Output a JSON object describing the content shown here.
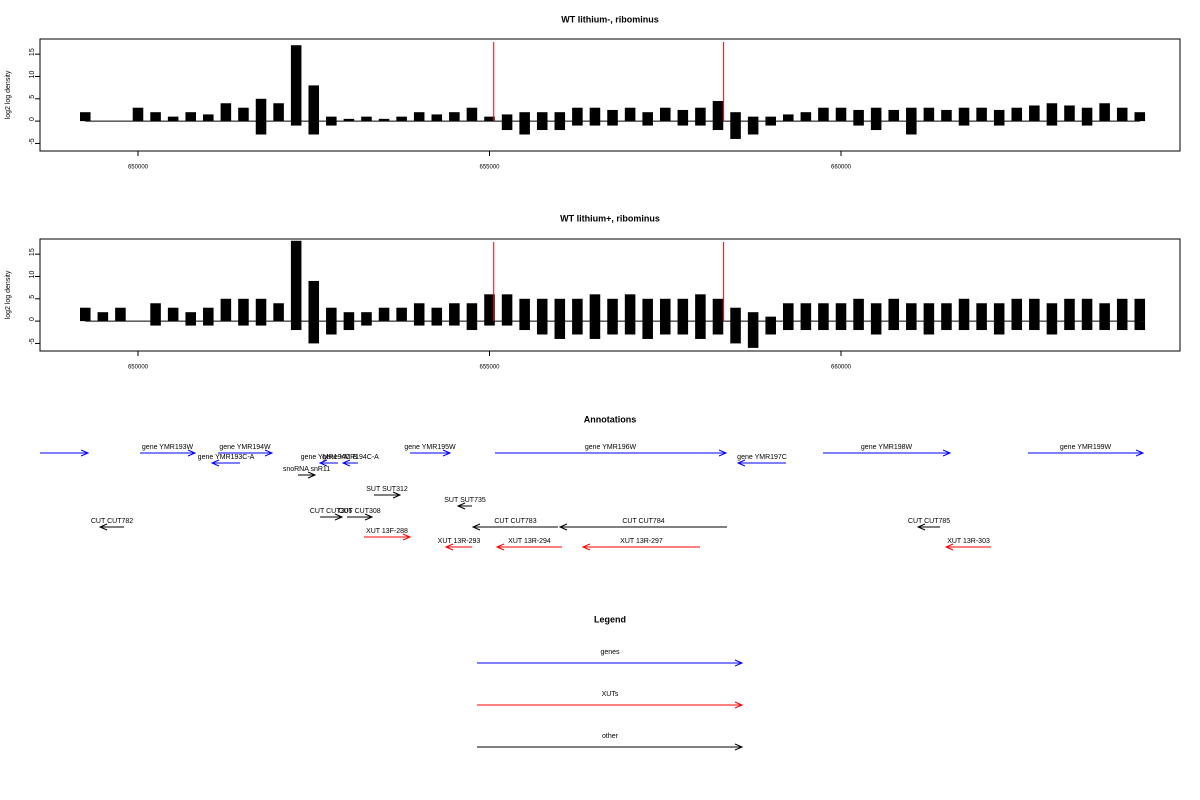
{
  "chart_data": [
    {
      "type": "bar",
      "title": "WT lithium-, ribominus",
      "ylabel": "log2 log density",
      "x": [
        649250,
        649500,
        649750,
        650000,
        650250,
        650500,
        650750,
        651000,
        651250,
        651500,
        651750,
        652000,
        652250,
        652500,
        652750,
        653000,
        653250,
        653500,
        653750,
        654000,
        654250,
        654500,
        654750,
        655000,
        655250,
        655500,
        655750,
        656000,
        656250,
        656500,
        656750,
        657000,
        657250,
        657500,
        657750,
        658000,
        658250,
        658500,
        658750,
        659000,
        659250,
        659500,
        659750,
        660000,
        660250,
        660500,
        660750,
        661000,
        661250,
        661500,
        661750,
        662000,
        662250,
        662500,
        662750,
        663000,
        663250,
        663500,
        663750,
        664000,
        664250
      ],
      "series": [
        {
          "color": "#000000",
          "values": [
            2,
            0,
            0,
            3,
            2,
            1,
            2,
            1.5,
            4,
            3,
            5,
            4,
            17,
            8,
            1,
            0.5,
            1,
            0.5,
            1,
            2,
            1.5,
            2,
            3,
            1,
            1.5,
            2,
            2,
            2,
            3,
            3,
            2.5,
            3,
            2,
            3,
            2.5,
            3,
            4.5,
            2,
            1,
            1,
            1.5,
            2,
            3,
            3,
            2.5,
            3,
            2.5,
            3,
            3,
            2.5,
            3,
            3,
            2.5,
            3,
            3.5,
            4,
            3.5,
            3,
            4,
            3,
            2
          ]
        },
        {
          "color": "#000000",
          "values": [
            0,
            0,
            0,
            0,
            0,
            0,
            0,
            0,
            0,
            0,
            -3,
            0,
            -1,
            -3,
            -1,
            0,
            0,
            0,
            0,
            0,
            0,
            0,
            0,
            0,
            -2,
            -3,
            -2,
            -2,
            -1,
            -1,
            -1,
            0,
            -1,
            0,
            -1,
            -1,
            -2,
            -4,
            -3,
            -1,
            0,
            0,
            0,
            0,
            -1,
            -2,
            0,
            -3,
            0,
            0,
            -1,
            0,
            -1,
            0,
            0,
            -1,
            0,
            -1,
            0,
            0,
            0
          ]
        }
      ],
      "vlines": {
        "x": [
          655060,
          658330
        ],
        "color": "#ff0000"
      },
      "xlim": [
        648606,
        664822
      ],
      "xticks": [
        650000,
        655000,
        660000
      ],
      "ylim": [
        -6.7,
        18.4
      ],
      "yticks": [
        -5,
        0,
        5,
        10,
        15
      ]
    },
    {
      "type": "bar",
      "title": "WT lithium+, ribominus",
      "ylabel": "log2 log density",
      "x": [
        649250,
        649500,
        649750,
        650000,
        650250,
        650500,
        650750,
        651000,
        651250,
        651500,
        651750,
        652000,
        652250,
        652500,
        652750,
        653000,
        653250,
        653500,
        653750,
        654000,
        654250,
        654500,
        654750,
        655000,
        655250,
        655500,
        655750,
        656000,
        656250,
        656500,
        656750,
        657000,
        657250,
        657500,
        657750,
        658000,
        658250,
        658500,
        658750,
        659000,
        659250,
        659500,
        659750,
        660000,
        660250,
        660500,
        660750,
        661000,
        661250,
        661500,
        661750,
        662000,
        662250,
        662500,
        662750,
        663000,
        663250,
        663500,
        663750,
        664000,
        664250
      ],
      "series": [
        {
          "color": "#000000",
          "values": [
            3,
            2,
            3,
            0,
            4,
            3,
            2,
            3,
            5,
            5,
            5,
            4,
            18,
            9,
            3,
            2,
            2,
            3,
            3,
            4,
            3,
            4,
            4,
            6,
            6,
            5,
            5,
            5,
            5,
            6,
            5,
            6,
            5,
            5,
            5,
            6,
            5,
            3,
            2,
            1,
            4,
            4,
            4,
            4,
            5,
            4,
            5,
            4,
            4,
            4,
            5,
            4,
            4,
            5,
            5,
            4,
            5,
            5,
            4,
            5,
            5
          ]
        },
        {
          "color": "#000000",
          "values": [
            0,
            0,
            0,
            0,
            -1,
            0,
            -1,
            -1,
            0,
            -1,
            -1,
            0,
            -2,
            -5,
            -3,
            -2,
            -1,
            0,
            0,
            -1,
            -1,
            -1,
            -2,
            -1,
            -1,
            -2,
            -3,
            -4,
            -3,
            -4,
            -3,
            -3,
            -4,
            -3,
            -3,
            -4,
            -3,
            -5,
            -6,
            -3,
            -2,
            -2,
            -2,
            -2,
            -2,
            -3,
            -2,
            -2,
            -3,
            -2,
            -2,
            -2,
            -3,
            -2,
            -2,
            -3,
            -2,
            -2,
            -2,
            -2,
            -2
          ]
        }
      ],
      "vlines": {
        "x": [
          655060,
          658330
        ],
        "color": "#ff0000"
      },
      "xlim": [
        648606,
        664822
      ],
      "xticks": [
        650000,
        655000,
        660000
      ],
      "ylim": [
        -6.7,
        18.4
      ],
      "yticks": [
        -5,
        0,
        5,
        10,
        15
      ]
    }
  ],
  "annotations": {
    "title": "Annotations",
    "features": [
      {
        "start": 648606,
        "end": 649289,
        "strand": "+",
        "color": "#0000ff"
      },
      {
        "label": "gene YMR193W",
        "start": 650029,
        "end": 650811,
        "strand": "+",
        "color": "#0000ff"
      },
      {
        "label": "gene YMR194W",
        "start": 651138,
        "end": 651906,
        "strand": "+",
        "color": "#0000ff"
      },
      {
        "label": "gene YMR193C-A",
        "start": 651053,
        "end": 651451,
        "strand": "-",
        "color": "#0000ff"
      },
      {
        "label": "gene YMR194C-B",
        "start": 652589,
        "end": 652845,
        "strand": "-",
        "color": "#0000ff"
      },
      {
        "label": "gene YMR194C-A",
        "start": 652916,
        "end": 653130,
        "strand": "-",
        "color": "#0000ff"
      },
      {
        "label": "snoRNA snR11",
        "start": 652276,
        "end": 652518,
        "strand": "+",
        "color": "#000000"
      },
      {
        "label": "gene YMR195W",
        "start": 653869,
        "end": 654438,
        "strand": "+",
        "color": "#0000ff"
      },
      {
        "label": "gene YMR196W",
        "start": 655078,
        "end": 658364,
        "strand": "+",
        "color": "#0000ff"
      },
      {
        "label": "gene YMR197C",
        "start": 658535,
        "end": 659218,
        "strand": "-",
        "color": "#0000ff"
      },
      {
        "label": "gene YMR198W",
        "start": 659744,
        "end": 661551,
        "strand": "+",
        "color": "#0000ff"
      },
      {
        "label": "gene YMR199W",
        "start": 662660,
        "end": 664296,
        "strand": "+",
        "color": "#0000ff"
      },
      {
        "label": "SUT SUT312",
        "start": 653357,
        "end": 653727,
        "strand": "+",
        "color": "#000000"
      },
      {
        "label": "SUT SUT735",
        "start": 654552,
        "end": 654751,
        "strand": "-",
        "color": "#000000"
      },
      {
        "label": "CUT CUT782",
        "start": 649460,
        "end": 649801,
        "strand": "-",
        "color": "#000000"
      },
      {
        "label": "CUT CUT306",
        "start": 652589,
        "end": 652902,
        "strand": "+",
        "color": "#000000"
      },
      {
        "label": "CUT CUT308",
        "start": 652973,
        "end": 653329,
        "strand": "+",
        "color": "#000000"
      },
      {
        "label": "CUT CUT783",
        "start": 654765,
        "end": 655974,
        "strand": "-",
        "color": "#000000"
      },
      {
        "label": "CUT CUT784",
        "start": 656003,
        "end": 658378,
        "strand": "-",
        "color": "#000000"
      },
      {
        "label": "CUT CUT785",
        "start": 661096,
        "end": 661409,
        "strand": "-",
        "color": "#000000"
      },
      {
        "label": "XUT 13F-288",
        "start": 653215,
        "end": 653869,
        "strand": "+",
        "color": "#ff0000"
      },
      {
        "label": "XUT 13R-293",
        "start": 654381,
        "end": 654751,
        "strand": "-",
        "color": "#ff0000"
      },
      {
        "label": "XUT 13R-294",
        "start": 655107,
        "end": 656031,
        "strand": "-",
        "color": "#ff0000"
      },
      {
        "label": "XUT 13R-297",
        "start": 656330,
        "end": 657994,
        "strand": "-",
        "color": "#ff0000"
      },
      {
        "label": "XUT 13R-303",
        "start": 661494,
        "end": 662134,
        "strand": "-",
        "color": "#ff0000"
      }
    ]
  },
  "legend": {
    "title": "Legend",
    "items": [
      {
        "label": "genes",
        "color": "#0000ff"
      },
      {
        "label": "XUTs",
        "color": "#ff0000"
      },
      {
        "label": "other",
        "color": "#000000"
      }
    ]
  }
}
